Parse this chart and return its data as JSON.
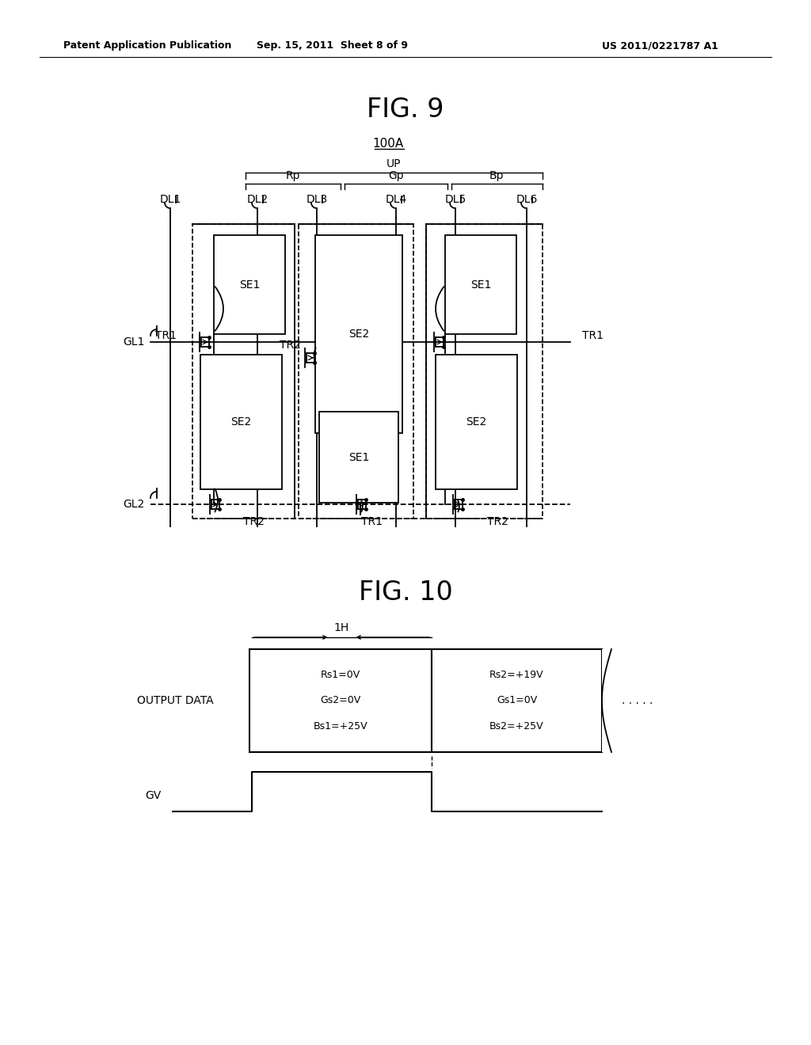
{
  "bg_color": "#ffffff",
  "header_left": "Patent Application Publication",
  "header_center": "Sep. 15, 2011  Sheet 8 of 9",
  "header_right": "US 2011/0221787 A1",
  "fig9_title": "FIG. 9",
  "fig10_title": "FIG. 10",
  "label_100A": "100A",
  "label_UP": "UP",
  "label_Rp": "Rp",
  "label_Gp": "Gp",
  "label_Bp": "Bp",
  "label_DL1": "DL1",
  "label_DL2": "DL2",
  "label_DL3": "DL3",
  "label_DL4": "DL4",
  "label_DL5": "DL5",
  "label_DL6": "DL6",
  "label_TR1_left": "TR1",
  "label_TR1_right": "TR1",
  "label_TR2_mid": "TR2",
  "label_TR1_bot": "TR1",
  "label_TR2_bot_left": "TR2",
  "label_TR2_bot_right": "TR2",
  "label_GL1": "GL1",
  "label_GL2": "GL2",
  "label_SE1": "SE1",
  "label_SE2": "SE2",
  "label_1H": "1H",
  "label_OUTPUT_DATA": "OUTPUT DATA",
  "label_GV": "GV",
  "cell1_line1": "Rs1=0V",
  "cell1_line2": "Gs2=0V",
  "cell1_line3": "Bs1=+25V",
  "cell2_line1": "Rs2=+19V",
  "cell2_line2": "Gs1=0V",
  "cell2_line3": "Bs2=+25V",
  "dots": ". . . . ."
}
